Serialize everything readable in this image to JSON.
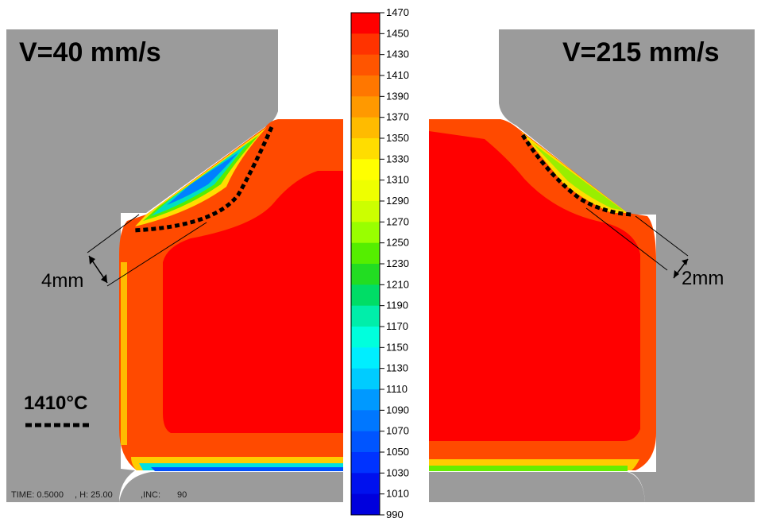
{
  "left_panel": {
    "title": "V=40 mm/s",
    "dimension_label": "4mm",
    "isotherm_legend": "1410°C",
    "status": {
      "time": "TIME: 0.5000",
      "h": ", H: 25.00",
      "inc_label": ",INC:",
      "inc_value": "90"
    }
  },
  "right_panel": {
    "title": "V=215 mm/s",
    "dimension_label": "2mm"
  },
  "colorbar": {
    "min": 990,
    "max": 1470,
    "ticks": [
      "1470",
      "1450",
      "1430",
      "1410",
      "1390",
      "1370",
      "1350",
      "1330",
      "1310",
      "1290",
      "1270",
      "1250",
      "1230",
      "1210",
      "1190",
      "1170",
      "1150",
      "1130",
      "1110",
      "1090",
      "1070",
      "1050",
      "1030",
      "1010",
      "990"
    ],
    "colors": [
      "#ff0000",
      "#ff3300",
      "#ff5500",
      "#ff7700",
      "#ff9900",
      "#ffbb00",
      "#ffdd00",
      "#ffff00",
      "#eeff00",
      "#ccff00",
      "#99ff00",
      "#55ee00",
      "#22dd22",
      "#00dd66",
      "#00eeaa",
      "#00ffdd",
      "#00eeff",
      "#00ccff",
      "#0099ff",
      "#0077ff",
      "#0055ff",
      "#0033ff",
      "#0011ee",
      "#0000dd"
    ]
  },
  "colors": {
    "die_gray": "#9b9b9b",
    "hot_red": "#ff0000",
    "orange_red": "#ff4a00"
  },
  "icons": {
    "isotherm": "dotted-line-icon",
    "dimension": "double-arrow-icon"
  }
}
